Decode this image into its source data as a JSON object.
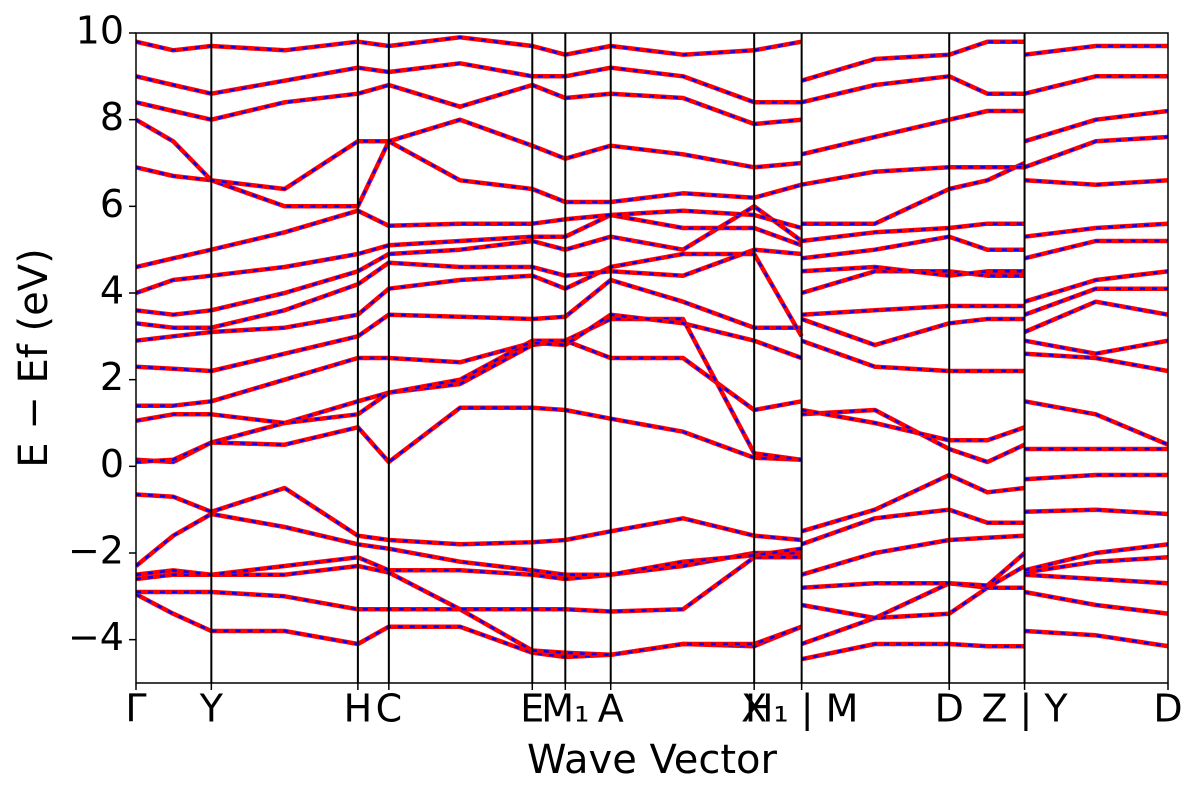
{
  "chart_data": {
    "type": "line",
    "xlabel": "Wave Vector",
    "ylabel": "E − Ef (eV)",
    "color": "#ff0000",
    "dash_color": "#0000ff",
    "xlim": [
      0,
      1
    ],
    "ylim": [
      -5,
      10
    ],
    "xticks": [
      {
        "value": 0,
        "label": "Γ"
      },
      {
        "value": 0.073,
        "label": "Y"
      },
      {
        "value": 0.215,
        "label": "H"
      },
      {
        "value": 0.245,
        "label": "C"
      },
      {
        "value": 0.384,
        "label": "E"
      },
      {
        "value": 0.416,
        "label": "M₁"
      },
      {
        "value": 0.46,
        "label": "A"
      },
      {
        "value": 0.599,
        "label": "X"
      },
      {
        "value": 0.645,
        "label": "H₁ | M"
      },
      {
        "value": 0.788,
        "label": "D"
      },
      {
        "value": 0.861,
        "label": "Z | Y"
      },
      {
        "value": 1,
        "label": "D"
      }
    ],
    "yticks": [
      {
        "value": -4,
        "label": "−4"
      },
      {
        "value": -2,
        "label": "−2"
      },
      0,
      2,
      4,
      6,
      8,
      10
    ],
    "x": [
      0,
      0.036,
      0.073,
      0.144,
      0.215,
      0.245,
      0.314,
      0.384,
      0.416,
      0.46,
      0.53,
      0.599,
      0.645,
      0.645,
      0.716,
      0.788,
      0.825,
      0.861,
      0.861,
      0.93,
      1
    ],
    "series": [
      {
        "values": [
          -2.95,
          -3.4,
          -3.8,
          -3.8,
          -4.1,
          -3.7,
          -3.7,
          -4.3,
          -4.4,
          -4.35,
          -4.1,
          -4.15,
          -3.7,
          -4.45,
          -4.1,
          -4.1,
          -4.15,
          -4.15,
          -3.8,
          -3.9,
          -4.15
        ]
      },
      {
        "values": [
          -2.9,
          -2.9,
          -2.9,
          -3.0,
          -3.3,
          -3.3,
          -3.3,
          -4.25,
          -4.3,
          -4.35,
          -4.1,
          -4.1,
          -3.7,
          -4.1,
          -3.5,
          -3.4,
          -2.8,
          -2.8,
          -2.9,
          -3.2,
          -3.4
        ]
      },
      {
        "values": [
          -2.6,
          -2.5,
          -2.5,
          -2.5,
          -2.3,
          -2.45,
          -3.3,
          -3.3,
          -3.3,
          -3.35,
          -3.3,
          -2.1,
          -2.1,
          -3.2,
          -3.5,
          -2.7,
          -2.8,
          -2.3,
          -2.5,
          -2.6,
          -2.7
        ]
      },
      {
        "values": [
          -2.5,
          -2.4,
          -2.5,
          -2.3,
          -2.1,
          -2.4,
          -2.4,
          -2.5,
          -2.6,
          -2.5,
          -2.3,
          -2.0,
          -2.0,
          -2.8,
          -2.7,
          -2.7,
          -2.75,
          -2.0,
          -2.45,
          -2.2,
          -2.1
        ]
      },
      {
        "values": [
          -2.3,
          -1.6,
          -1.1,
          -1.4,
          -1.8,
          -1.9,
          -2.2,
          -2.4,
          -2.5,
          -2.5,
          -2.2,
          -2.05,
          -1.9,
          -2.5,
          -2.0,
          -1.7,
          -1.65,
          -1.6,
          -2.4,
          -2.0,
          -1.8
        ]
      },
      {
        "values": [
          -0.65,
          -0.7,
          -1.05,
          -0.5,
          -1.6,
          -1.7,
          -1.8,
          -1.75,
          -1.7,
          -1.5,
          -1.2,
          -1.6,
          -1.7,
          -1.8,
          -1.2,
          -1.0,
          -1.3,
          -1.3,
          -1.05,
          -1.0,
          -1.1
        ]
      },
      {
        "values": [
          0.15,
          0.1,
          0.55,
          1.0,
          1.5,
          1.7,
          1.9,
          2.8,
          2.9,
          2.5,
          2.5,
          1.3,
          1.5,
          -1.5,
          -1.0,
          -0.2,
          -0.6,
          -0.5,
          -0.3,
          -0.2,
          -0.2
        ]
      },
      {
        "values": [
          0.1,
          0.15,
          0.55,
          0.5,
          0.9,
          0.1,
          1.35,
          1.35,
          1.3,
          1.1,
          0.8,
          0.2,
          0.15,
          1.2,
          1.3,
          0.4,
          0.1,
          0.5,
          0.4,
          0.4,
          0.4
        ]
      },
      {
        "values": [
          1.05,
          1.2,
          1.2,
          1.0,
          1.2,
          1.7,
          2.0,
          2.9,
          2.9,
          3.4,
          3.4,
          0.3,
          0.15,
          1.3,
          1.0,
          0.6,
          0.6,
          0.9,
          1.5,
          1.2,
          0.5
        ]
      },
      {
        "values": [
          1.4,
          1.4,
          1.5,
          2.0,
          2.5,
          2.5,
          2.4,
          2.85,
          2.8,
          3.5,
          3.3,
          2.9,
          2.5,
          2.9,
          2.3,
          2.2,
          2.2,
          2.2,
          2.6,
          2.5,
          2.2
        ]
      },
      {
        "values": [
          2.3,
          2.25,
          2.2,
          2.6,
          3.0,
          3.5,
          3.45,
          3.4,
          3.45,
          4.3,
          3.8,
          3.2,
          3.2,
          3.4,
          2.8,
          3.3,
          3.4,
          3.4,
          2.9,
          2.6,
          2.9
        ]
      },
      {
        "values": [
          2.9,
          3.0,
          3.1,
          3.2,
          3.5,
          4.1,
          4.3,
          4.4,
          4.1,
          4.6,
          4.9,
          4.9,
          3.0,
          3.5,
          3.6,
          3.7,
          3.7,
          3.7,
          3.1,
          3.8,
          3.5
        ]
      },
      {
        "values": [
          3.3,
          3.2,
          3.2,
          3.6,
          4.2,
          4.7,
          4.6,
          4.6,
          4.4,
          4.5,
          4.4,
          5.0,
          4.9,
          4.0,
          4.5,
          4.5,
          4.4,
          4.4,
          3.5,
          4.1,
          4.1
        ]
      },
      {
        "values": [
          3.6,
          3.5,
          3.6,
          4.0,
          4.5,
          4.9,
          5.0,
          5.2,
          5.0,
          5.3,
          5.0,
          6.0,
          5.2,
          4.5,
          4.6,
          4.4,
          4.5,
          4.5,
          3.8,
          4.3,
          4.5
        ]
      },
      {
        "values": [
          4.0,
          4.3,
          4.4,
          4.6,
          4.9,
          5.1,
          5.2,
          5.3,
          5.3,
          5.8,
          5.5,
          5.5,
          5.1,
          4.8,
          5.0,
          5.3,
          5.0,
          5.0,
          4.8,
          5.2,
          5.2
        ]
      },
      {
        "values": [
          4.6,
          4.8,
          5.0,
          5.4,
          5.9,
          5.55,
          5.6,
          5.6,
          5.7,
          5.8,
          5.9,
          5.8,
          5.5,
          5.2,
          5.4,
          5.5,
          5.6,
          5.6,
          5.3,
          5.5,
          5.6
        ]
      },
      {
        "values": [
          6.9,
          6.7,
          6.6,
          6.0,
          6.0,
          7.5,
          6.6,
          6.4,
          6.1,
          6.1,
          6.3,
          6.2,
          6.5,
          5.6,
          5.6,
          6.4,
          6.6,
          7.0,
          6.6,
          6.5,
          6.6
        ]
      },
      {
        "values": [
          8.0,
          7.5,
          6.6,
          6.4,
          7.5,
          7.5,
          8.0,
          7.4,
          7.1,
          7.4,
          7.2,
          6.9,
          7.0,
          6.5,
          6.8,
          6.9,
          6.9,
          6.9,
          6.9,
          7.5,
          7.6
        ]
      },
      {
        "values": [
          8.4,
          8.2,
          8.0,
          8.4,
          8.6,
          8.8,
          8.3,
          8.8,
          8.5,
          8.6,
          8.5,
          7.9,
          8.0,
          7.2,
          7.6,
          8.0,
          8.2,
          8.2,
          7.5,
          8.0,
          8.2
        ]
      },
      {
        "values": [
          9.0,
          8.8,
          8.6,
          8.9,
          9.2,
          9.1,
          9.3,
          9.0,
          9.0,
          9.2,
          9.0,
          8.4,
          8.4,
          8.4,
          8.8,
          9.0,
          8.6,
          8.6,
          8.6,
          9.0,
          9.0
        ]
      },
      {
        "values": [
          9.8,
          9.6,
          9.7,
          9.6,
          9.8,
          9.7,
          9.9,
          9.7,
          9.5,
          9.7,
          9.5,
          9.6,
          9.8,
          8.9,
          9.4,
          9.5,
          9.8,
          9.8,
          9.5,
          9.7,
          9.7
        ]
      }
    ]
  }
}
